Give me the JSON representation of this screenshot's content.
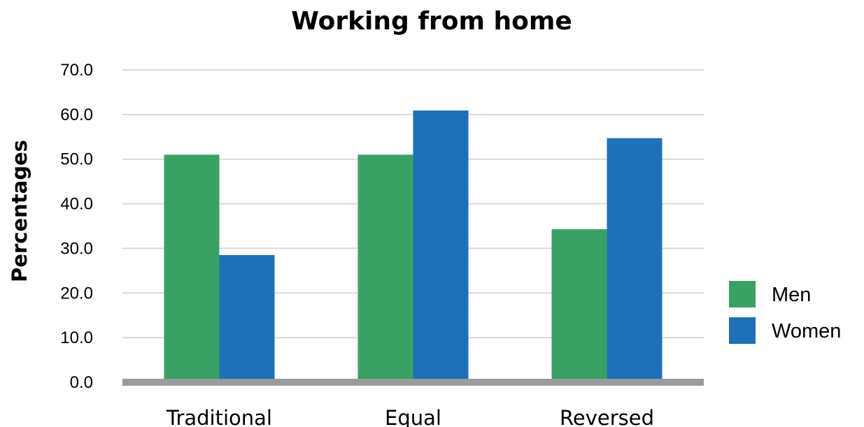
{
  "chart_data": {
    "type": "bar",
    "title": "Working from home",
    "xlabel": "",
    "ylabel": "Percentages",
    "ylim": [
      0,
      70
    ],
    "yticks": [
      "0.0",
      "10.0",
      "20.0",
      "30.0",
      "40.0",
      "50.0",
      "60.0",
      "70.0"
    ],
    "categories": [
      "Traditional",
      "Equal",
      "Reversed"
    ],
    "series": [
      {
        "name": "Men",
        "color": "#3aa165",
        "values": [
          51.0,
          51.0,
          34.3
        ]
      },
      {
        "name": "Women",
        "color": "#1e70b8",
        "values": [
          28.5,
          60.9,
          54.7
        ]
      }
    ],
    "grid": true,
    "legend_position": "right",
    "colors": {
      "grid": "#d9d9d9",
      "baseline": "#9b9b9b"
    }
  }
}
